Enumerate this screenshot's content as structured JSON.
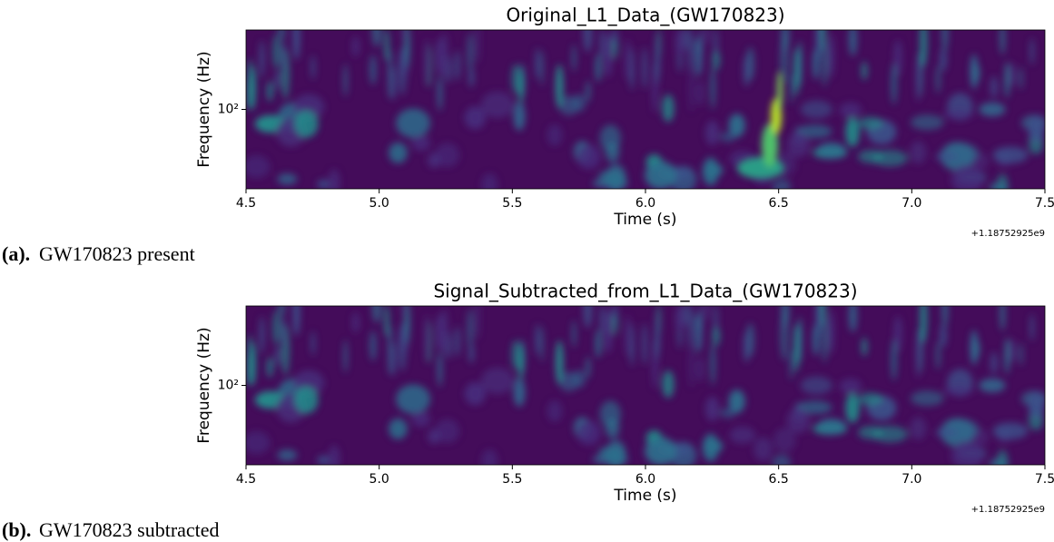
{
  "chart_data": [
    {
      "type": "spectrogram",
      "title": "Original_L1_Data_(GW170823)",
      "xlabel": "Time (s)",
      "ylabel": "Frequency (Hz)",
      "x_offset": "+1.18752925e9",
      "xlim": [
        4.5,
        7.5
      ],
      "xticks": [
        4.5,
        {
          "value": 5,
          "label": "5.0"
        },
        5.5,
        {
          "value": 6,
          "label": "6.0"
        },
        6.5,
        {
          "value": 7,
          "label": "7.0"
        },
        7.5
      ],
      "ylim": [
        20,
        500
      ],
      "yticks": [
        {
          "value": 100,
          "label": "10²"
        }
      ],
      "yscale": "log",
      "caption_label": "(a).",
      "caption": "GW170823 present"
    },
    {
      "type": "spectrogram",
      "title": "Signal_Subtracted_from_L1_Data_(GW170823)",
      "xlabel": "Time (s)",
      "ylabel": "Frequency (Hz)",
      "x_offset": "+1.18752925e9",
      "xlim": [
        4.5,
        7.5
      ],
      "xticks": [
        4.5,
        {
          "value": 5,
          "label": "5.0"
        },
        5.5,
        {
          "value": 6,
          "label": "6.0"
        },
        6.5,
        {
          "value": 7,
          "label": "7.0"
        },
        7.5
      ],
      "ylim": [
        20,
        500
      ],
      "yticks": [
        {
          "value": 100,
          "label": "10²"
        }
      ],
      "yscale": "log",
      "caption_label": "(b).",
      "caption": "GW170823 subtracted"
    }
  ]
}
